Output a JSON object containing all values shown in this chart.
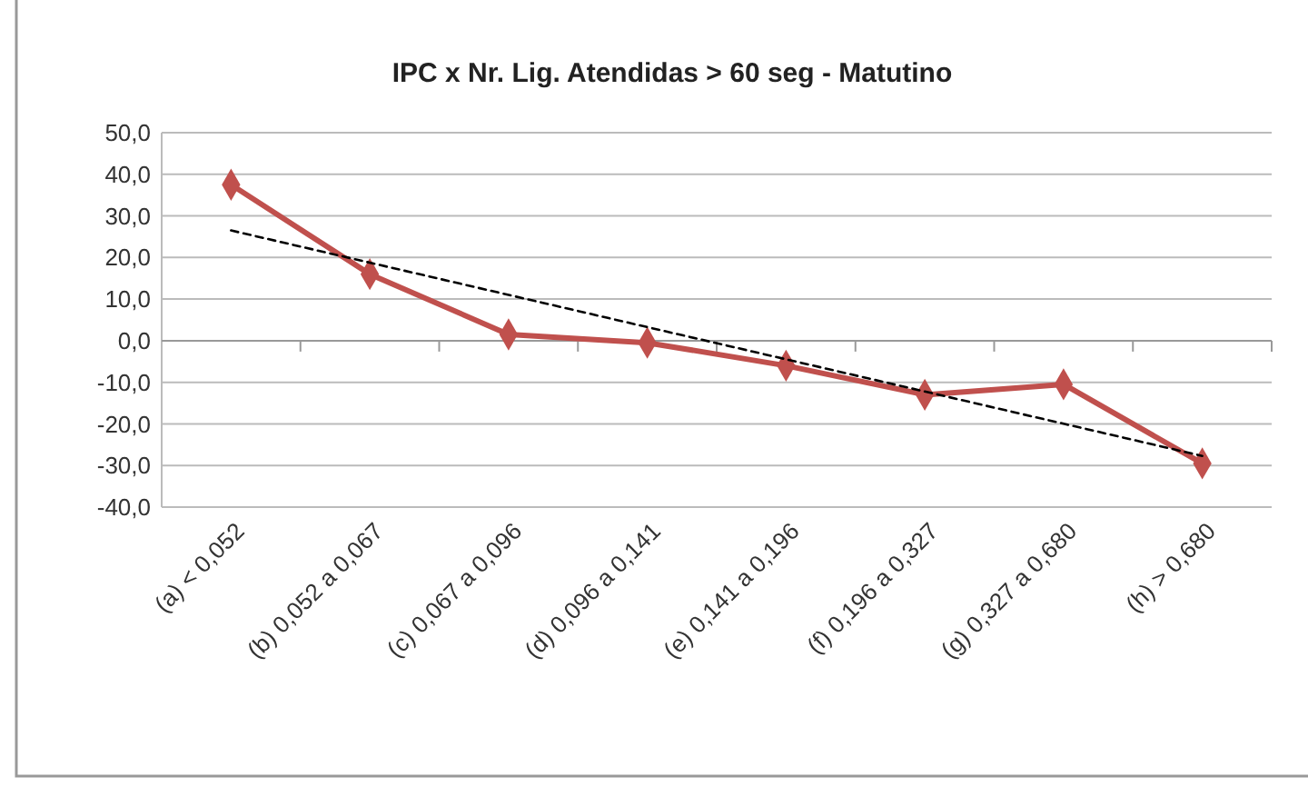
{
  "chart_data": {
    "type": "line",
    "title": "IPC x Nr. Lig. Atendidas > 60 seg - Matutino",
    "categories": [
      "(a) < 0,052",
      "(b) 0,052 a 0,067",
      "(c) 0,067 a 0,096",
      "(d) 0,096 a 0,141",
      "(e) 0,141 a 0,196",
      "(f) 0,196 a 0,327",
      "(g) 0,327 a 0,680",
      "(h) > 0,680"
    ],
    "series": [
      {
        "color": "#c0504d",
        "values": [
          37.5,
          16,
          1.5,
          -0.5,
          -6,
          -13,
          -10.5,
          -29.5
        ],
        "marker": "diamond",
        "line_style": "solid"
      },
      {
        "type": "line",
        "x": [
          "(a) < 0,052",
          "(h) > 0,680"
        ],
        "color": "#000000",
        "values": [
          26.5,
          -27.7
        ],
        "marker": "none",
        "line_style": "dashed"
      }
    ],
    "ylim": [
      -40,
      50
    ],
    "yticks": [
      {
        "value": -40,
        "label": "-40,0"
      },
      {
        "value": -30,
        "label": "-30,0"
      },
      {
        "value": -20,
        "label": "-20,0"
      },
      {
        "value": -10,
        "label": "-10,0"
      },
      {
        "value": 0,
        "label": "0,0"
      },
      {
        "value": 10,
        "label": "10,0"
      },
      {
        "value": 20,
        "label": "20,0"
      },
      {
        "value": 30,
        "label": "30,0"
      },
      {
        "value": 40,
        "label": "40,0"
      },
      {
        "value": 50,
        "label": "50,0"
      }
    ],
    "grid": "y"
  }
}
